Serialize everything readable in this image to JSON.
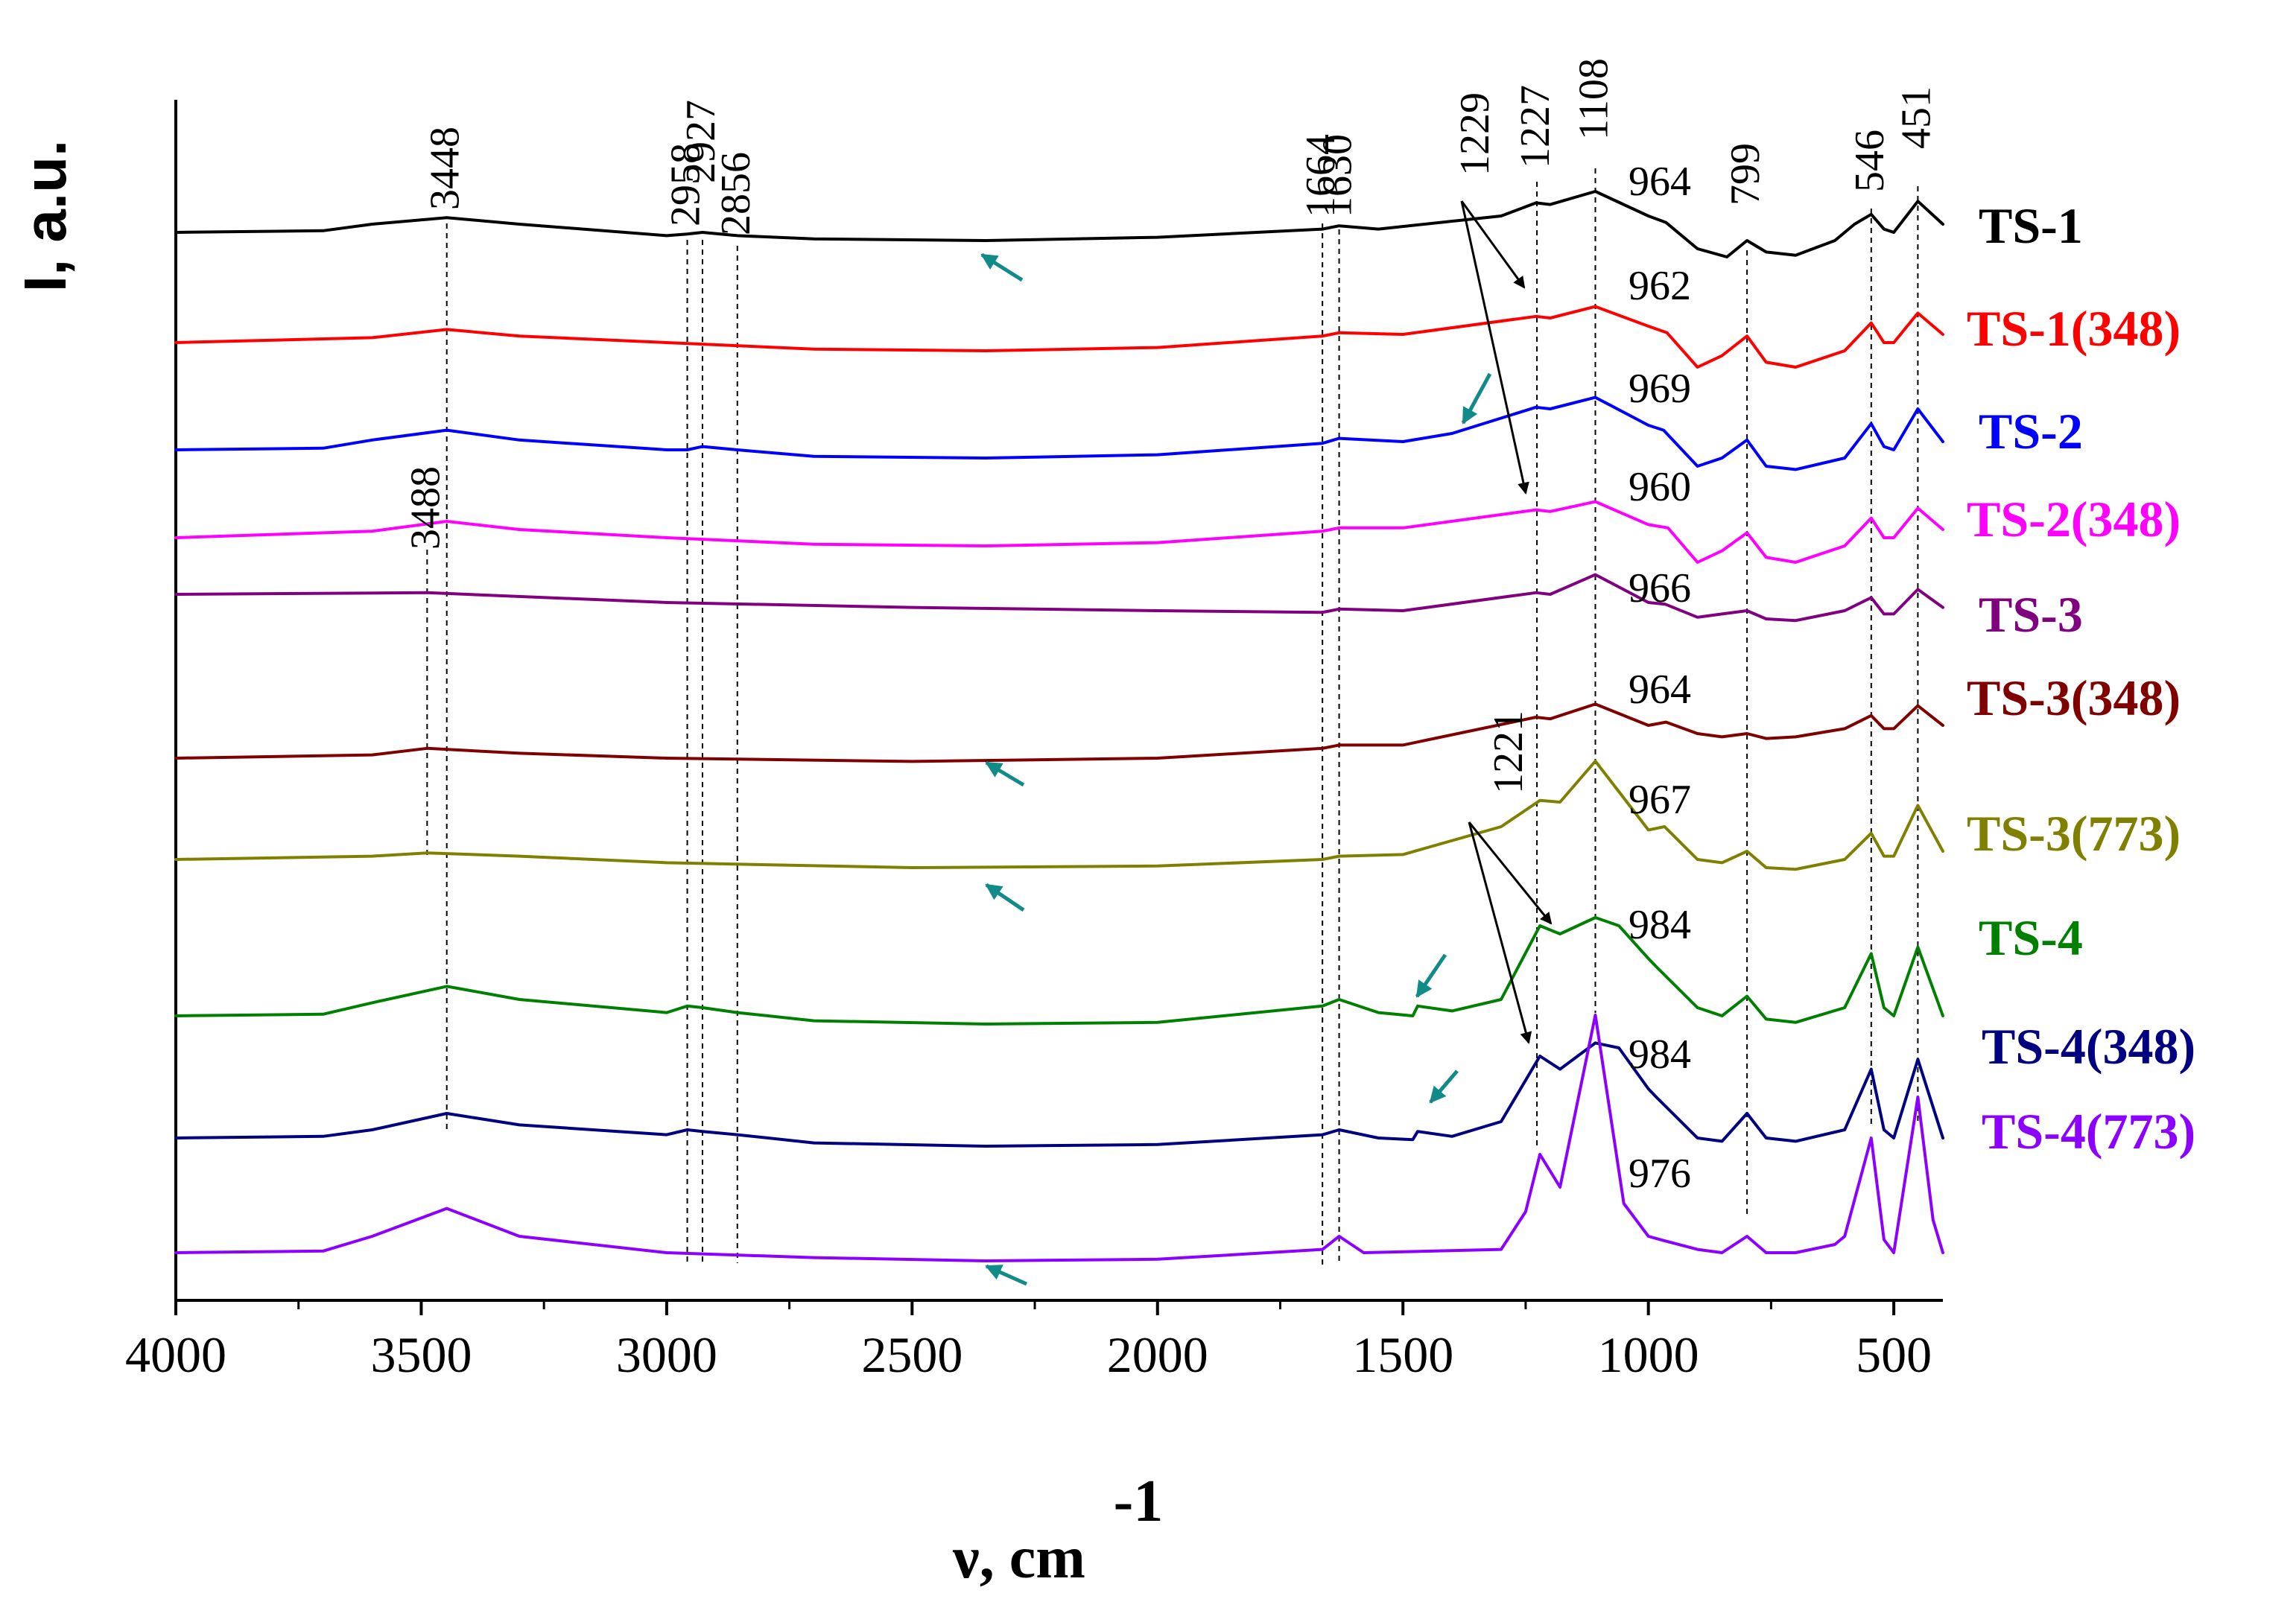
{
  "chart_data": {
    "type": "line",
    "title": "",
    "xlabel": "ν, cm",
    "xlabel_superscript": "-1",
    "ylabel": "I, a.u.",
    "xlim": [
      4000,
      400
    ],
    "xticks": [
      4000,
      3500,
      3000,
      2500,
      2000,
      1500,
      1000,
      500
    ],
    "peak_positions": [
      3448,
      3488,
      2958,
      2927,
      2856,
      1664,
      1630,
      1227,
      1221,
      1108,
      799,
      546,
      451
    ],
    "peak_labels_top": [
      "3448",
      "2958",
      "2927",
      "2856",
      "1664",
      "1630",
      "1229",
      "1227",
      "1108",
      "964",
      "799",
      "546",
      "451"
    ],
    "peak_label_3488": "3488",
    "peak_label_1221": "1221",
    "series": [
      {
        "name": "TS-1",
        "color": "#000000",
        "offset": 0.0,
        "x": [
          4000,
          3700,
          3600,
          3448,
          3300,
          3000,
          2958,
          2927,
          2856,
          2700,
          2350,
          2000,
          1664,
          1630,
          1550,
          1300,
          1229,
          1200,
          1108,
          1000,
          964,
          900,
          840,
          799,
          760,
          700,
          620,
          580,
          546,
          520,
          500,
          451,
          400
        ],
        "y": [
          0.0,
          0.01,
          0.05,
          0.09,
          0.05,
          -0.02,
          -0.01,
          0.0,
          -0.02,
          -0.04,
          -0.05,
          -0.03,
          0.02,
          0.04,
          0.02,
          0.1,
          0.18,
          0.17,
          0.25,
          0.1,
          0.06,
          -0.1,
          -0.15,
          -0.05,
          -0.12,
          -0.14,
          -0.05,
          0.05,
          0.11,
          0.02,
          0.0,
          0.19,
          0.05
        ],
        "peak_labels": [
          "964"
        ]
      },
      {
        "name": "TS-1(348)",
        "color": "#ff0000",
        "offset": 1.0,
        "x": [
          4000,
          3600,
          3448,
          3300,
          3000,
          2700,
          2350,
          2000,
          1664,
          1630,
          1500,
          1229,
          1200,
          1108,
          1000,
          962,
          900,
          850,
          799,
          760,
          700,
          600,
          546,
          520,
          500,
          451,
          400
        ],
        "y": [
          0.0,
          0.03,
          0.08,
          0.04,
          0.0,
          -0.04,
          -0.05,
          -0.03,
          0.04,
          0.06,
          0.05,
          0.16,
          0.15,
          0.22,
          0.1,
          0.06,
          -0.15,
          -0.08,
          0.04,
          -0.12,
          -0.15,
          -0.05,
          0.12,
          0.0,
          0.0,
          0.18,
          0.05
        ],
        "peak_labels": [
          "962"
        ]
      },
      {
        "name": "TS-2",
        "color": "#0000ff",
        "offset": 2.0,
        "x": [
          4000,
          3700,
          3600,
          3448,
          3300,
          3000,
          2958,
          2927,
          2856,
          2700,
          2350,
          2000,
          1664,
          1630,
          1500,
          1400,
          1229,
          1200,
          1108,
          1000,
          969,
          900,
          850,
          799,
          760,
          700,
          600,
          546,
          520,
          500,
          451,
          400
        ],
        "y": [
          0.0,
          0.01,
          0.06,
          0.12,
          0.06,
          0.0,
          0.0,
          0.02,
          0.0,
          -0.04,
          -0.05,
          -0.03,
          0.04,
          0.07,
          0.05,
          0.1,
          0.26,
          0.25,
          0.32,
          0.15,
          0.12,
          -0.1,
          -0.05,
          0.06,
          -0.1,
          -0.12,
          -0.05,
          0.16,
          0.02,
          0.0,
          0.25,
          0.05
        ],
        "peak_labels": [
          "969"
        ]
      },
      {
        "name": "TS-2(348)",
        "color": "#ff00ff",
        "offset": 3.0,
        "x": [
          4000,
          3600,
          3448,
          3300,
          3000,
          2700,
          2350,
          2000,
          1664,
          1630,
          1500,
          1229,
          1200,
          1108,
          1000,
          960,
          900,
          850,
          799,
          760,
          700,
          600,
          546,
          520,
          500,
          451,
          400
        ],
        "y": [
          0.0,
          0.04,
          0.1,
          0.05,
          0.0,
          -0.04,
          -0.05,
          -0.03,
          0.04,
          0.06,
          0.06,
          0.17,
          0.16,
          0.22,
          0.08,
          0.06,
          -0.15,
          -0.08,
          0.03,
          -0.12,
          -0.15,
          -0.05,
          0.12,
          0.0,
          0.0,
          0.18,
          0.05
        ],
        "peak_labels": [
          "960"
        ]
      },
      {
        "name": "TS-3",
        "color": "#800080",
        "offset": 4.0,
        "x": [
          4000,
          3488,
          3000,
          2500,
          2000,
          1664,
          1630,
          1500,
          1229,
          1200,
          1108,
          1000,
          966,
          900,
          850,
          799,
          760,
          700,
          600,
          546,
          520,
          500,
          451,
          400
        ],
        "y": [
          0.0,
          0.01,
          -0.05,
          -0.08,
          -0.1,
          -0.11,
          -0.09,
          -0.1,
          0.01,
          0.0,
          0.12,
          -0.05,
          -0.06,
          -0.14,
          -0.12,
          -0.1,
          -0.15,
          -0.16,
          -0.1,
          -0.02,
          -0.12,
          -0.12,
          0.03,
          -0.08
        ],
        "peak_labels": [
          "966"
        ]
      },
      {
        "name": "TS-3(348)",
        "color": "#800000",
        "offset": 5.0,
        "x": [
          4000,
          3600,
          3488,
          3300,
          3000,
          2500,
          2000,
          1664,
          1630,
          1500,
          1229,
          1200,
          1108,
          1000,
          964,
          900,
          850,
          799,
          760,
          700,
          600,
          546,
          520,
          500,
          451,
          400
        ],
        "y": [
          0.0,
          0.02,
          0.06,
          0.03,
          0.0,
          -0.02,
          0.0,
          0.06,
          0.08,
          0.08,
          0.25,
          0.24,
          0.33,
          0.2,
          0.22,
          0.15,
          0.13,
          0.15,
          0.12,
          0.13,
          0.18,
          0.26,
          0.18,
          0.18,
          0.32,
          0.2
        ],
        "peak_labels": [
          "964"
        ]
      },
      {
        "name": "TS-3(773)",
        "color": "#808000",
        "offset": 6.0,
        "x": [
          4000,
          3600,
          3488,
          3300,
          3000,
          2500,
          2000,
          1664,
          1630,
          1500,
          1300,
          1221,
          1180,
          1108,
          1000,
          967,
          900,
          850,
          799,
          760,
          700,
          600,
          546,
          520,
          500,
          451,
          400
        ],
        "y": [
          0.0,
          0.02,
          0.04,
          0.02,
          -0.02,
          -0.05,
          -0.04,
          0.0,
          0.02,
          0.03,
          0.2,
          0.36,
          0.35,
          0.6,
          0.18,
          0.2,
          0.0,
          -0.02,
          0.05,
          -0.05,
          -0.06,
          0.0,
          0.16,
          0.02,
          0.02,
          0.33,
          0.05
        ],
        "peak_labels": [
          "967"
        ]
      },
      {
        "name": "TS-4",
        "color": "#008000",
        "offset": 7.0,
        "x": [
          4000,
          3700,
          3600,
          3448,
          3300,
          3000,
          2958,
          2927,
          2856,
          2700,
          2350,
          2000,
          1664,
          1630,
          1550,
          1480,
          1470,
          1400,
          1300,
          1221,
          1180,
          1108,
          1060,
          1000,
          984,
          900,
          850,
          799,
          760,
          700,
          600,
          546,
          520,
          500,
          451,
          400
        ],
        "y": [
          0.0,
          0.01,
          0.08,
          0.18,
          0.1,
          0.02,
          0.06,
          0.05,
          0.02,
          -0.03,
          -0.05,
          -0.04,
          0.06,
          0.1,
          0.02,
          0.0,
          0.06,
          0.03,
          0.1,
          0.55,
          0.5,
          0.6,
          0.55,
          0.35,
          0.3,
          0.05,
          0.0,
          0.12,
          -0.02,
          -0.04,
          0.05,
          0.38,
          0.05,
          0.0,
          0.42,
          0.0
        ],
        "peak_labels": [
          "984"
        ]
      },
      {
        "name": "TS-4(348)",
        "color": "#000080",
        "offset": 8.0,
        "x": [
          4000,
          3700,
          3600,
          3448,
          3300,
          3000,
          2958,
          2927,
          2856,
          2700,
          2350,
          2000,
          1664,
          1630,
          1550,
          1480,
          1470,
          1400,
          1300,
          1221,
          1180,
          1108,
          1060,
          1000,
          984,
          900,
          850,
          799,
          760,
          700,
          600,
          546,
          520,
          500,
          451,
          400
        ],
        "y": [
          0.0,
          0.01,
          0.05,
          0.15,
          0.08,
          0.02,
          0.05,
          0.04,
          0.02,
          -0.03,
          -0.05,
          -0.04,
          0.02,
          0.05,
          0.0,
          -0.01,
          0.04,
          0.01,
          0.1,
          0.5,
          0.42,
          0.58,
          0.55,
          0.3,
          0.25,
          0.0,
          -0.02,
          0.15,
          0.0,
          -0.02,
          0.05,
          0.42,
          0.05,
          0.0,
          0.48,
          0.0
        ],
        "peak_labels": [
          "984"
        ]
      },
      {
        "name": "TS-4(773)",
        "color": "#8b00ff",
        "offset": 9.0,
        "x": [
          4000,
          3700,
          3600,
          3448,
          3300,
          3000,
          2700,
          2350,
          2000,
          1664,
          1630,
          1580,
          1300,
          1250,
          1221,
          1180,
          1108,
          1050,
          1000,
          976,
          900,
          850,
          799,
          760,
          700,
          620,
          600,
          546,
          520,
          500,
          451,
          420,
          400
        ],
        "y": [
          0.0,
          0.01,
          0.1,
          0.27,
          0.1,
          0.0,
          -0.03,
          -0.05,
          -0.04,
          0.02,
          0.1,
          0.0,
          0.02,
          0.25,
          0.6,
          0.4,
          1.45,
          0.3,
          0.1,
          0.08,
          0.02,
          0.0,
          0.1,
          0.0,
          0.0,
          0.05,
          0.1,
          0.7,
          0.08,
          0.0,
          0.95,
          0.2,
          0.0
        ],
        "peak_labels": [
          "976"
        ]
      }
    ],
    "annotation_arrows": [
      "1229 → TS-1(348), TS-2(348)",
      "1221 → TS-4, TS-4(348)",
      "small teal arrows mark minor artifacts"
    ]
  }
}
